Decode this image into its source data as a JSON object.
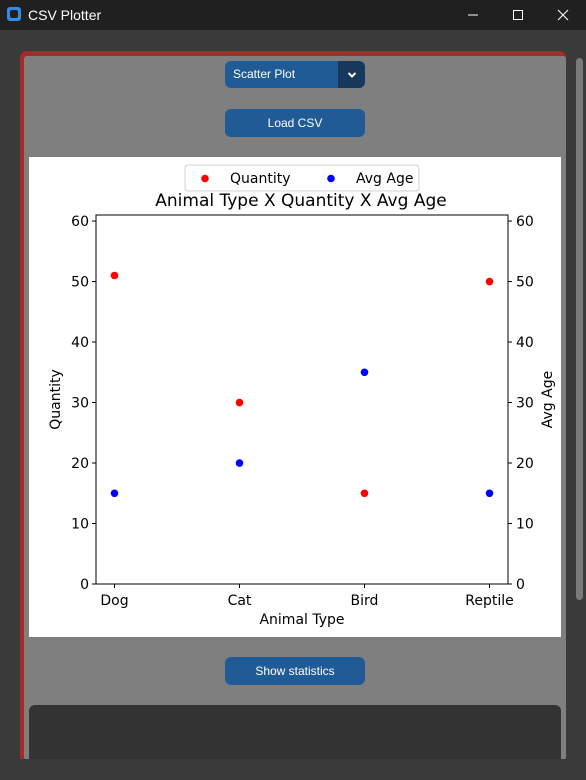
{
  "window": {
    "title": "CSV Plotter",
    "icon": "app-icon"
  },
  "controls": {
    "plot_type": {
      "selected": "Scatter Plot",
      "icon": "chevron-down-icon"
    },
    "load_button": "Load CSV",
    "stats_button": "Show statistics"
  },
  "colors": {
    "frame_border": "#a52a2a",
    "panel_bg": "#7f7f7f",
    "button": "#205b96",
    "button_dark": "#15385c",
    "series_quantity": "#ff0000",
    "series_avg_age": "#0000ff"
  },
  "chart_data": {
    "type": "scatter",
    "title": "Animal Type X Quantity X Avg Age",
    "xlabel": "Animal Type",
    "ylabel": "Quantity",
    "ylabel_right": "Avg Age",
    "categories": [
      "Dog",
      "Cat",
      "Bird",
      "Reptile"
    ],
    "ylim": [
      0,
      61
    ],
    "yticks": [
      0,
      10,
      20,
      30,
      40,
      50,
      60
    ],
    "legend_position": "top-center",
    "grid": false,
    "series": [
      {
        "name": "Quantity",
        "color": "#ff0000",
        "axis": "left",
        "values": [
          51,
          30,
          15,
          50
        ]
      },
      {
        "name": "Avg Age",
        "color": "#0000ff",
        "axis": "right",
        "values": [
          15,
          20,
          35,
          15
        ]
      }
    ]
  }
}
